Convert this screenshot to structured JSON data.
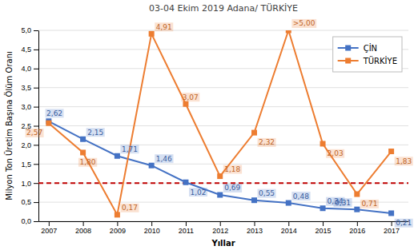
{
  "chart_data": {
    "type": "line",
    "title": "03-04 Ekim 2019 Adana/ TÜRKİYE",
    "xlabel": "Yıllar",
    "ylabel": "Milyon Ton Üretim Başına Ölüm Oranı",
    "x": [
      2007,
      2008,
      2009,
      2010,
      2011,
      2012,
      2013,
      2014,
      2015,
      2016,
      2017
    ],
    "series": [
      {
        "name": "ÇİN",
        "color": "#4472C4",
        "marker": "square",
        "values": [
          2.62,
          2.15,
          1.71,
          1.46,
          1.02,
          0.69,
          0.55,
          0.48,
          0.34,
          0.31,
          0.21
        ],
        "value_labels": [
          "2,62",
          "2,15",
          "1,71",
          "1,46",
          "1,02",
          "0,69",
          "0,55",
          "0,48",
          "0,34",
          "0,31",
          "0,21"
        ]
      },
      {
        "name": "TÜRKİYE",
        "color": "#ED7D31",
        "marker": "square",
        "values": [
          2.57,
          1.8,
          0.17,
          4.91,
          3.07,
          1.18,
          2.32,
          5.0,
          2.03,
          0.71,
          1.83
        ],
        "value_labels": [
          "2,57",
          "1,80",
          "0,17",
          "4,91",
          "3,07",
          "1,18",
          "2,32",
          ">5,00",
          "2,03",
          "0,71",
          "1,83"
        ]
      }
    ],
    "xlim": [
      2006.7,
      2017.5
    ],
    "xticks": [
      2007,
      2008,
      2009,
      2010,
      2011,
      2012,
      2013,
      2014,
      2015,
      2016,
      2017
    ],
    "ylim": [
      0.0,
      5.0
    ],
    "yticks": [
      {
        "value": 0.0,
        "label": "0,0"
      },
      {
        "value": 0.5,
        "label": "0,5"
      },
      {
        "value": 1.0,
        "label": "1,0"
      },
      {
        "value": 1.5,
        "label": "1,5"
      },
      {
        "value": 2.0,
        "label": "2,0"
      },
      {
        "value": 2.5,
        "label": "2,5"
      },
      {
        "value": 3.0,
        "label": "3,0"
      },
      {
        "value": 3.5,
        "label": "3,5"
      },
      {
        "value": 4.0,
        "label": "4,0"
      },
      {
        "value": 4.5,
        "label": "4,5"
      },
      {
        "value": 5.0,
        "label": "5,0"
      }
    ],
    "grid": "y",
    "legend": "upper right",
    "data_labels": true,
    "hlines": [
      {
        "value": 1.0,
        "color": "#C00000",
        "line_style": "dashed"
      }
    ]
  }
}
